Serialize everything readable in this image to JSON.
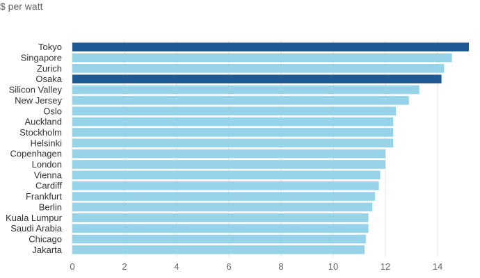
{
  "chart_data": {
    "type": "bar",
    "orientation": "horizontal",
    "unit_label": "$ per watt",
    "categories": [
      "Tokyo",
      "Singapore",
      "Zurich",
      "Osaka",
      "Silicon Valley",
      "New Jersey",
      "Oslo",
      "Auckland",
      "Stockholm",
      "Helsinki",
      "Copenhagen",
      "London",
      "Vienna",
      "Cardiff",
      "Frankfurt",
      "Berlin",
      "Kuala Lumpur",
      "Saudi Arabia",
      "Chicago",
      "Jakarta"
    ],
    "values": [
      15.2,
      14.55,
      14.25,
      14.15,
      13.3,
      12.9,
      12.4,
      12.3,
      12.3,
      12.3,
      12.0,
      12.0,
      11.8,
      11.75,
      11.6,
      11.5,
      11.35,
      11.35,
      11.25,
      11.2
    ],
    "highlighted": [
      "Tokyo",
      "Osaka"
    ],
    "xlim": [
      0,
      15.2
    ],
    "xticks": [
      0,
      2,
      4,
      6,
      8,
      10,
      12,
      14
    ],
    "grid": true,
    "colors": {
      "bar": "#96d3e8",
      "highlight": "#1f5994",
      "grid": "#e6e3df"
    }
  }
}
